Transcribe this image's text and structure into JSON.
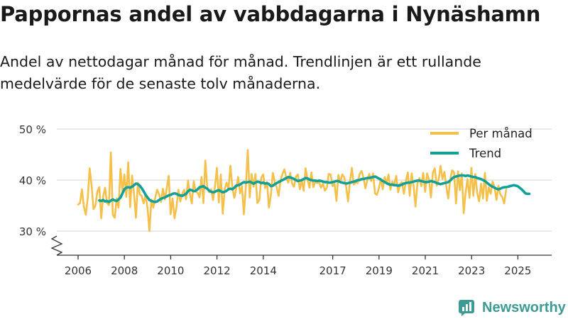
{
  "header": {
    "title": "Pappornas andel av vabbdagarna i Nynäshamn",
    "subtitle": "Andel av nettodagar månad för månad. Trendlinjen är ett rullande medelvärde för de senaste tolv månaderna."
  },
  "brand": {
    "name": "Newsworthy",
    "icon": "newsworthy-logo-icon"
  },
  "colors": {
    "monthly": "#f5c04a",
    "trend": "#13a197",
    "grid": "#dcdcdc",
    "axis": "#333333"
  },
  "chart_data": {
    "type": "line",
    "title": "Pappornas andel av vabbdagarna i Nynäshamn",
    "xlabel": "",
    "ylabel": "",
    "ylim": [
      26,
      50
    ],
    "yticks": [
      30,
      40,
      50
    ],
    "ytick_labels": [
      "30 %",
      "40 %",
      "50 %"
    ],
    "xticks": [
      2006,
      2008,
      2010,
      2012,
      2014,
      2017,
      2019,
      2021,
      2023,
      2025
    ],
    "xtick_labels": [
      "2006",
      "2008",
      "2010",
      "2012",
      "2014",
      "2017",
      "2019",
      "2021",
      "2023",
      "2025"
    ],
    "grid": true,
    "legend_position": "top-right",
    "series": [
      {
        "name": "Per månad",
        "x_start": 2006.0,
        "x_step": 0.0833,
        "values": [
          35.2,
          35.5,
          38.2,
          34.8,
          33.2,
          36.5,
          42.3,
          38.9,
          34.3,
          35.0,
          37.8,
          38.6,
          32.5,
          36.8,
          38.5,
          35.5,
          35.1,
          45.4,
          33.2,
          32.6,
          36.4,
          34.6,
          42.2,
          37.7,
          41.1,
          36.7,
          43.5,
          34.7,
          40.9,
          37.3,
          32.6,
          39.5,
          37.2,
          36.9,
          35.4,
          37.1,
          34.5,
          30.0,
          36.2,
          34.6,
          36.5,
          38.1,
          37.2,
          35.7,
          38.3,
          36.2,
          38.4,
          40.8,
          33.3,
          36.4,
          32.5,
          34.6,
          38.1,
          35.8,
          37.3,
          38.1,
          36.2,
          39.9,
          37.3,
          35.4,
          39.8,
          37.7,
          37.5,
          36.6,
          40.6,
          35.5,
          43.8,
          38.6,
          37.6,
          38.2,
          36.1,
          38.8,
          42.4,
          35.6,
          41.1,
          33.4,
          38.1,
          39.5,
          38.2,
          42.8,
          38.6,
          36.5,
          38.3,
          40.6,
          37.4,
          38.8,
          33.3,
          38.8,
          45.9,
          36.6,
          41.2,
          38.7,
          41.2,
          35.5,
          36.1,
          40.5,
          41.1,
          38.4,
          39.6,
          34.6,
          37.1,
          41.4,
          39.6,
          38.6,
          36.9,
          40.0,
          41.2,
          42.1,
          40.4,
          39.5,
          41.4,
          39.3,
          38.7,
          40.7,
          41.1,
          38.2,
          39.9,
          37.9,
          42.3,
          40.1,
          38.5,
          41.5,
          38.6,
          39.7,
          39.4,
          39.6,
          38.5,
          39.3,
          37.9,
          38.5,
          41.2,
          41.1,
          38.8,
          39.3,
          35.9,
          41.0,
          39.5,
          41.1,
          40.6,
          38.7,
          35.8,
          39.6,
          42.4,
          39.1,
          39.5,
          39.4,
          41.2,
          41.8,
          40.5,
          38.4,
          39.9,
          41.2,
          39.8,
          41.3,
          37.4,
          37.1,
          38.4,
          40.3,
          38.2,
          40.6,
          39.3,
          41.1,
          38.1,
          39.7,
          39.2,
          40.8,
          37.6,
          39.2,
          39.6,
          37.3,
          39.8,
          41.5,
          36.9,
          41.3,
          38.9,
          34.8,
          39.3,
          40.4,
          38.8,
          41.4,
          37.7,
          41.3,
          40.1,
          36.6,
          41.5,
          42.3,
          38.9,
          40.1,
          42.8,
          40.2,
          41.6,
          38.7,
          36.4,
          40.1,
          41.9,
          41.5,
          35.4,
          41.7,
          38.0,
          41.3,
          33.5,
          37.6,
          40.2,
          36.5,
          42.4,
          36.9,
          41.2,
          37.5,
          35.8,
          39.3,
          36.4,
          41.4,
          35.9,
          38.6,
          37.3,
          39.7,
          38.6,
          36.1,
          38.9,
          37.2,
          36.7,
          35.4,
          38.1
        ]
      },
      {
        "name": "Trend",
        "x_start": 2006.9167,
        "x_step": 0.0833,
        "values": [
          36.0,
          35.9,
          36.1,
          35.8,
          35.9,
          35.7,
          36.0,
          36.2,
          36.0,
          35.9,
          36.2,
          36.6,
          37.4,
          38.2,
          38.5,
          38.6,
          38.5,
          38.7,
          39.0,
          39.3,
          39.2,
          38.9,
          38.4,
          37.8,
          37.1,
          36.6,
          36.1,
          35.9,
          35.8,
          35.7,
          35.8,
          36.1,
          36.3,
          36.5,
          36.6,
          36.8,
          37.0,
          37.1,
          37.3,
          37.4,
          37.3,
          37.1,
          37.0,
          36.9,
          37.1,
          37.3,
          37.8,
          38.1,
          38.0,
          37.8,
          37.9,
          38.2,
          38.6,
          38.7,
          38.8,
          38.5,
          38.3,
          37.9,
          37.7,
          37.6,
          37.7,
          37.9,
          38.0,
          37.8,
          37.6,
          37.7,
          37.9,
          38.2,
          38.3,
          38.2,
          38.5,
          38.9,
          39.0,
          39.1,
          39.4,
          39.6,
          39.5,
          39.6,
          39.7,
          39.5,
          39.3,
          39.5,
          39.7,
          39.6,
          39.4,
          39.5,
          39.3,
          39.4,
          39.2,
          38.8,
          38.9,
          39.2,
          39.4,
          39.6,
          39.8,
          40.0,
          40.2,
          40.4,
          40.6,
          40.5,
          40.4,
          40.2,
          40.0,
          39.8,
          39.9,
          40.0,
          40.2,
          40.4,
          40.3,
          40.1,
          40.0,
          39.9,
          39.9,
          39.8,
          39.9,
          39.8,
          39.7,
          39.6,
          39.6,
          39.5,
          39.5,
          39.6,
          39.7,
          39.8,
          39.8,
          39.6,
          39.5,
          39.4,
          39.3,
          39.4,
          39.5,
          39.6,
          39.7,
          39.8,
          40.0,
          40.0,
          40.2,
          40.2,
          40.3,
          40.4,
          40.4,
          40.5,
          40.6,
          40.7,
          40.5,
          40.3,
          40.1,
          39.8,
          39.6,
          39.4,
          39.2,
          39.1,
          39.1,
          39.0,
          39.0,
          38.9,
          39.0,
          39.1,
          39.3,
          39.4,
          39.5,
          39.5,
          39.6,
          39.7,
          39.8,
          39.9,
          39.9,
          39.8,
          39.7,
          39.6,
          39.6,
          39.7,
          39.8,
          39.7,
          39.6,
          39.4,
          39.3,
          39.2,
          39.3,
          39.4,
          39.5,
          39.6,
          39.9,
          40.3,
          40.6,
          40.7,
          40.8,
          40.9,
          40.9,
          40.9,
          40.8,
          40.9,
          40.8,
          40.7,
          40.6,
          40.6,
          40.4,
          40.3,
          40.2,
          40.0,
          39.8,
          39.5,
          39.2,
          38.9,
          38.7,
          38.5,
          38.3,
          38.2,
          38.3,
          38.5,
          38.6,
          38.6,
          38.7,
          38.8,
          38.9,
          39.0,
          38.9,
          38.8,
          38.5,
          38.2,
          37.8,
          37.4,
          37.3,
          37.3
        ]
      }
    ]
  }
}
